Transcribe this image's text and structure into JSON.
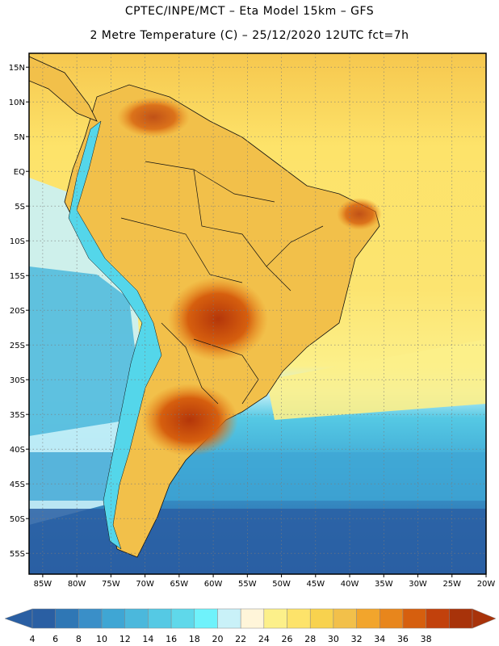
{
  "header": {
    "line1": "CPTEC/INPE/MCT –  Eta Model 15km – GFS",
    "line2": "2 Metre Temperature (C) – 25/12/2020 12UTC fct=7h"
  },
  "map": {
    "lat_labels": [
      "15N",
      "10N",
      "5N",
      "EQ",
      "5S",
      "10S",
      "15S",
      "20S",
      "25S",
      "30S",
      "35S",
      "40S",
      "45S",
      "50S",
      "55S"
    ],
    "lat_values": [
      15,
      10,
      5,
      0,
      -5,
      -10,
      -15,
      -20,
      -25,
      -30,
      -35,
      -40,
      -45,
      -50,
      -55
    ],
    "lon_labels": [
      "85W",
      "80W",
      "75W",
      "70W",
      "65W",
      "60W",
      "55W",
      "50W",
      "45W",
      "40W",
      "35W",
      "30W",
      "25W",
      "20W"
    ],
    "lon_values": [
      -85,
      -80,
      -75,
      -70,
      -65,
      -60,
      -55,
      -50,
      -45,
      -40,
      -35,
      -30,
      -25,
      -20
    ],
    "extent": {
      "lon_min": -87,
      "lon_max": -20,
      "lat_min": -58,
      "lat_max": 17
    },
    "colors": {
      "ocean_tropical": "#fde36a",
      "ocean_subtropical": "#fcef8c",
      "continent": "#f2c04a",
      "hot_core": "#c2410c",
      "andes": "#54d6ea",
      "ocean_cold": "#3a9ccf",
      "ocean_polar": "#2a5fa3",
      "grid": "#7a7a7a"
    }
  },
  "colorbar": {
    "labels": [
      "4",
      "6",
      "8",
      "10",
      "12",
      "14",
      "16",
      "18",
      "20",
      "22",
      "24",
      "26",
      "28",
      "30",
      "32",
      "34",
      "36",
      "38"
    ],
    "colors": [
      "#2a5fa3",
      "#2f77b5",
      "#3a8fc8",
      "#3fa6d4",
      "#4bb8dc",
      "#55c9e4",
      "#5fd8ea",
      "#6ff2fb",
      "#c9f1f8",
      "#fff5d9",
      "#fcf08a",
      "#fde36a",
      "#f8d24e",
      "#f2c04a",
      "#f2a52c",
      "#e8861c",
      "#d65f0e",
      "#c2410c",
      "#a8330a"
    ]
  }
}
